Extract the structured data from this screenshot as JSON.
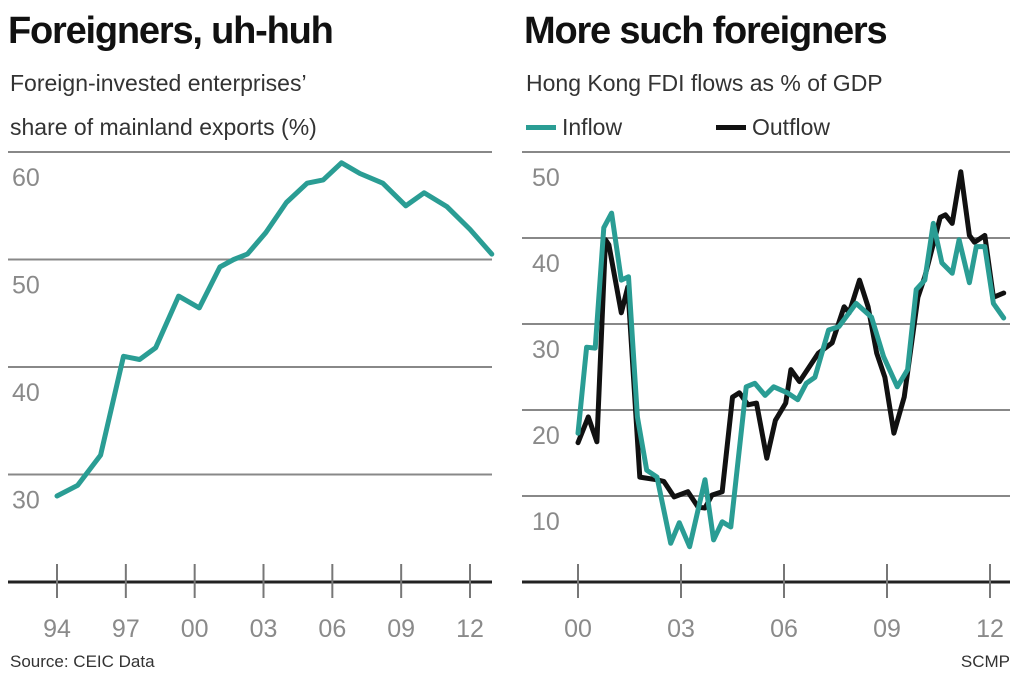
{
  "colors": {
    "inflow": "#2a9d94",
    "outflow": "#111111",
    "grid": "#888888",
    "axis": "#222222"
  },
  "source": "Source: CEIC Data",
  "credit": "SCMP",
  "chart_data": [
    {
      "type": "line",
      "title": "Foreigners, uh-huh",
      "subtitle_lines": [
        "Foreign-invested enterprises’",
        "share of mainland exports (%)"
      ],
      "xlabel": "",
      "ylabel": "",
      "xlim": [
        1993.9,
        2013
      ],
      "ylim": [
        20,
        60
      ],
      "yticks": [
        30,
        40,
        50,
        60
      ],
      "ytick_labels": [
        "30",
        "40",
        "50",
        "60"
      ],
      "xticks": [
        1994,
        1997,
        2000,
        2003,
        2006,
        2009,
        2012
      ],
      "xtick_labels": [
        "94",
        "97",
        "00",
        "03",
        "06",
        "09",
        "12"
      ],
      "grid": true,
      "series": [
        {
          "name": "Share of exports",
          "color": "#2a9d94",
          "x": [
            1994.0,
            1994.9,
            1995.9,
            1996.9,
            1997.6,
            1998.3,
            1999.3,
            2000.2,
            2001.1,
            2001.7,
            2002.3,
            2003.1,
            2004.0,
            2004.9,
            2005.6,
            2006.4,
            2007.2,
            2008.2,
            2009.2,
            2010.0,
            2011.0,
            2012.0,
            2012.95
          ],
          "y": [
            28.0,
            29.0,
            31.8,
            41.0,
            40.7,
            41.8,
            46.6,
            45.5,
            49.3,
            50.0,
            50.5,
            52.5,
            55.3,
            57.1,
            57.4,
            59.0,
            58.0,
            57.1,
            55.0,
            56.2,
            54.9,
            52.8,
            50.5
          ]
        }
      ]
    },
    {
      "type": "line",
      "title": "More such foreigners",
      "subtitle_lines": [
        "Hong Kong FDI flows as % of GDP"
      ],
      "xlabel": "",
      "ylabel": "",
      "xlim": [
        1999.6,
        2012.6
      ],
      "ylim": [
        0,
        50
      ],
      "yticks": [
        10,
        20,
        30,
        40,
        50
      ],
      "ytick_labels": [
        "10",
        "20",
        "30",
        "40",
        "50"
      ],
      "xticks": [
        2000,
        2003,
        2006,
        2009,
        2012
      ],
      "xtick_labels": [
        "00",
        "03",
        "06",
        "09",
        "12"
      ],
      "grid": true,
      "legend": {
        "placement": "top-left",
        "entries": [
          "Inflow",
          "Outflow"
        ]
      },
      "series": [
        {
          "name": "Outflow",
          "color": "#111111",
          "x": [
            2000.0,
            2000.3,
            2000.55,
            2000.8,
            2000.9,
            2001.26,
            2001.45,
            2001.8,
            2002.28,
            2002.5,
            2002.8,
            2003.2,
            2003.5,
            2003.7,
            2003.9,
            2004.2,
            2004.5,
            2004.7,
            2004.95,
            2005.2,
            2005.5,
            2005.75,
            2006.05,
            2006.2,
            2006.45,
            2007.0,
            2007.4,
            2007.75,
            2007.9,
            2008.2,
            2008.45,
            2008.7,
            2008.94,
            2009.2,
            2009.5,
            2009.9,
            2010.1,
            2010.55,
            2010.7,
            2010.9,
            2011.15,
            2011.4,
            2011.55,
            2011.85,
            2012.1,
            2012.4
          ],
          "y": [
            16.2,
            19.2,
            16.3,
            39.8,
            39.2,
            31.3,
            34.3,
            12.2,
            11.9,
            11.7,
            9.9,
            10.5,
            8.7,
            8.6,
            10.1,
            10.5,
            21.5,
            22.0,
            20.6,
            20.8,
            14.4,
            18.8,
            20.8,
            24.7,
            23.3,
            26.6,
            27.8,
            32.0,
            31.3,
            35.1,
            32.0,
            26.6,
            23.8,
            17.3,
            21.5,
            33.1,
            35.5,
            42.4,
            42.7,
            41.7,
            47.7,
            40.3,
            39.5,
            40.3,
            33.1,
            33.6
          ]
        },
        {
          "name": "Inflow",
          "color": "#2a9d94",
          "x": [
            2000.0,
            2000.25,
            2000.5,
            2000.75,
            2000.98,
            2001.26,
            2001.47,
            2001.73,
            2002.0,
            2002.3,
            2002.7,
            2002.95,
            2003.25,
            2003.7,
            2003.95,
            2004.2,
            2004.45,
            2004.9,
            2005.15,
            2005.45,
            2005.7,
            2006.1,
            2006.4,
            2006.65,
            2006.9,
            2007.3,
            2007.6,
            2008.1,
            2008.55,
            2008.9,
            2009.3,
            2009.6,
            2009.85,
            2010.1,
            2010.35,
            2010.6,
            2010.9,
            2011.1,
            2011.4,
            2011.6,
            2011.85,
            2012.1,
            2012.4
          ],
          "y": [
            17.3,
            27.3,
            27.2,
            41.2,
            42.9,
            35.1,
            35.5,
            19.2,
            13.0,
            12.2,
            4.5,
            6.9,
            4.1,
            11.9,
            4.9,
            7.0,
            6.4,
            22.7,
            23.1,
            21.7,
            22.7,
            22.0,
            21.2,
            23.1,
            23.8,
            29.3,
            29.7,
            32.4,
            30.8,
            26.2,
            22.7,
            24.7,
            34.0,
            35.1,
            41.7,
            37.1,
            35.9,
            39.8,
            34.8,
            39.0,
            39.0,
            32.4,
            30.7
          ]
        }
      ]
    }
  ]
}
